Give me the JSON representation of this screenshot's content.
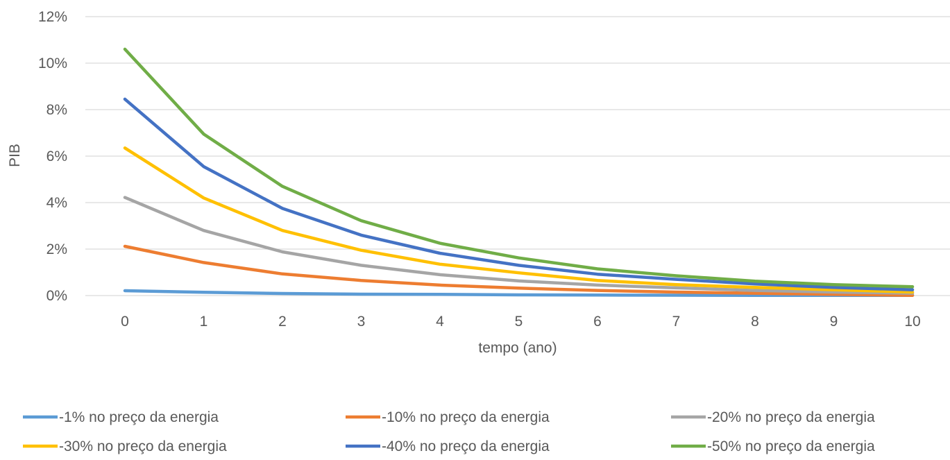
{
  "chart_data": {
    "type": "line",
    "title": "",
    "xlabel": "tempo (ano)",
    "ylabel": "PIB",
    "x": [
      0,
      1,
      2,
      3,
      4,
      5,
      6,
      7,
      8,
      9,
      10
    ],
    "ylim": [
      0,
      12
    ],
    "y_tick_values": [
      0,
      2,
      4,
      6,
      8,
      10,
      12
    ],
    "y_tick_labels": [
      "0%",
      "2%",
      "4%",
      "6%",
      "8%",
      "10%",
      "12%"
    ],
    "y_unit": "%",
    "grid": true,
    "legend_position": "bottom",
    "series": [
      {
        "name": "-1% no preço da energia",
        "color": "#5B9BD5",
        "values": [
          0.21,
          0.14,
          0.09,
          0.06,
          0.05,
          0.03,
          0.02,
          0.015,
          0.01,
          0.01,
          0.01
        ]
      },
      {
        "name": "-10% no preço da energia",
        "color": "#ED7D31",
        "values": [
          2.12,
          1.42,
          0.93,
          0.65,
          0.45,
          0.32,
          0.22,
          0.15,
          0.1,
          0.05,
          0.01
        ]
      },
      {
        "name": "-20% no preço da energia",
        "color": "#A5A5A5",
        "values": [
          4.22,
          2.8,
          1.88,
          1.3,
          0.9,
          0.63,
          0.45,
          0.33,
          0.22,
          0.15,
          0.1
        ]
      },
      {
        "name": "-30% no preço da energia",
        "color": "#FFC000",
        "values": [
          6.35,
          4.2,
          2.8,
          1.95,
          1.35,
          0.98,
          0.65,
          0.47,
          0.35,
          0.25,
          0.15
        ]
      },
      {
        "name": "-40% no preço da energia",
        "color": "#4472C4",
        "values": [
          8.45,
          5.55,
          3.75,
          2.6,
          1.82,
          1.3,
          0.92,
          0.7,
          0.5,
          0.35,
          0.25
        ]
      },
      {
        "name": "-50% no preço da energia",
        "color": "#70AD47",
        "values": [
          10.6,
          6.95,
          4.7,
          3.22,
          2.25,
          1.62,
          1.15,
          0.85,
          0.62,
          0.47,
          0.38
        ]
      }
    ]
  }
}
